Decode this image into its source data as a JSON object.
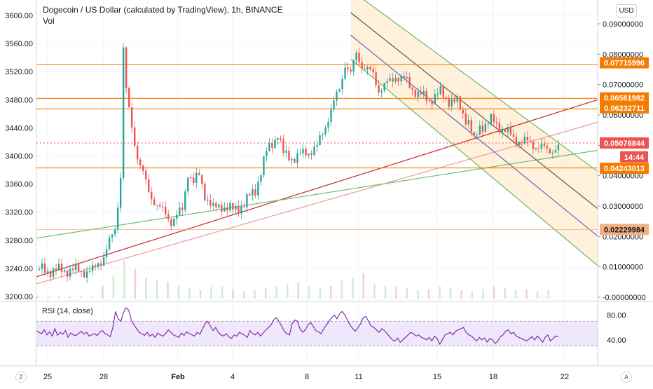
{
  "header": {
    "title": "Dogecoin / US Dollar (calculated by TradingView), 1h, BINANCE",
    "vol_label": "Vol",
    "currency_button": "USD"
  },
  "rsi": {
    "label": "RSI (14, close)",
    "ticks": [
      "80.00",
      "40.00"
    ],
    "band": [
      30,
      70
    ],
    "ylim": [
      0,
      100
    ],
    "series": [
      55,
      52,
      50,
      56,
      48,
      53,
      46,
      58,
      47,
      52,
      49,
      55,
      44,
      51,
      48,
      47,
      50,
      54,
      49,
      52,
      46,
      48,
      50,
      47,
      52,
      55,
      50,
      48,
      45,
      60,
      86,
      74,
      70,
      84,
      92,
      88,
      72,
      64,
      58,
      52,
      50,
      47,
      52,
      46,
      49,
      44,
      51,
      48,
      46,
      50,
      56,
      52,
      48,
      46,
      44,
      51,
      47,
      53,
      50,
      48,
      46,
      52,
      49,
      58,
      66,
      70,
      62,
      55,
      60,
      52,
      48,
      46,
      50,
      45,
      42,
      48,
      46,
      52,
      50,
      47,
      44,
      55,
      50,
      48,
      52,
      46,
      51,
      56,
      60,
      64,
      72,
      76,
      70,
      62,
      54,
      50,
      48,
      66,
      72,
      70,
      58,
      52,
      56,
      64,
      68,
      62,
      55,
      53,
      50,
      58,
      64,
      70,
      76,
      80,
      74,
      82,
      86,
      80,
      72,
      64,
      58,
      54,
      60,
      66,
      76,
      78,
      70,
      62,
      60,
      56,
      52,
      58,
      55,
      50,
      45,
      40,
      38,
      43,
      36,
      40,
      44,
      48,
      52,
      50,
      46,
      48,
      44,
      42,
      40,
      44,
      38,
      46,
      42,
      33,
      40,
      48,
      50,
      52,
      48,
      54,
      56,
      58,
      60,
      52,
      48,
      46,
      42,
      38,
      44,
      40,
      43,
      36,
      42,
      40,
      34,
      38,
      45,
      48,
      54,
      56,
      50,
      52,
      46,
      44,
      42,
      40,
      38,
      42,
      45,
      40,
      46,
      42,
      36,
      44,
      48,
      38,
      42,
      46,
      45
    ]
  },
  "chart_data": {
    "type": "candlestick",
    "title": "Dogecoin / US Dollar (calculated by TradingView), 1h, BINANCE",
    "ylim": [
      3200,
      3600
    ],
    "right_axis_ylim": [
      0.0,
      0.09
    ],
    "x_tick_labels": [
      "25",
      "28",
      "Feb",
      "4",
      "8",
      "11",
      "15",
      "18",
      "22"
    ],
    "y_tick_labels_left": [
      "3600.00",
      "3560.00",
      "3520.00",
      "3480.00",
      "3440.00",
      "3400.00",
      "3360.00",
      "3320.00",
      "3280.00",
      "3240.00",
      "3200.00"
    ],
    "y_tick_labels_right": [
      "0.09000000",
      "0.08000000",
      "0.07000000",
      "0.06000000",
      "0.05000000",
      "0.04000000",
      "0.03000000",
      "0.02000000",
      "0.01000000",
      "-0.00000000"
    ],
    "price_tags": [
      {
        "label": "0.07715996",
        "value": 0.07715996,
        "color": "#f57c00"
      },
      {
        "label": "0.06561982",
        "value": 0.06561982,
        "color": "#f57c00"
      },
      {
        "label": "0.06232711",
        "value": 0.06232711,
        "color": "#f57c00"
      },
      {
        "label": "0.05076844",
        "value": 0.05076844,
        "color": "#ef5350"
      },
      {
        "label": "14:44",
        "value": 0.0462,
        "color": "#ef5350"
      },
      {
        "label": "0.04243013",
        "value": 0.04243013,
        "color": "#f57c00"
      },
      {
        "label": "0.02229984",
        "value": 0.02229984,
        "color": "#f5b080"
      }
    ],
    "price_points": [
      [
        0,
        3238
      ],
      [
        4,
        3237
      ],
      [
        8,
        3237
      ],
      [
        12,
        3238
      ],
      [
        16,
        3236
      ],
      [
        20,
        3236
      ],
      [
        24,
        3258
      ],
      [
        28,
        3295
      ],
      [
        30,
        3372
      ],
      [
        31,
        3555
      ],
      [
        32,
        3490
      ],
      [
        34,
        3440
      ],
      [
        36,
        3400
      ],
      [
        40,
        3348
      ],
      [
        44,
        3325
      ],
      [
        48,
        3308
      ],
      [
        52,
        3322
      ],
      [
        54,
        3378
      ],
      [
        56,
        3362
      ],
      [
        58,
        3372
      ],
      [
        60,
        3346
      ],
      [
        63,
        3324
      ],
      [
        66,
        3330
      ],
      [
        70,
        3322
      ],
      [
        74,
        3332
      ],
      [
        78,
        3352
      ],
      [
        82,
        3405
      ],
      [
        86,
        3432
      ],
      [
        88,
        3402
      ],
      [
        92,
        3397
      ],
      [
        96,
        3405
      ],
      [
        100,
        3412
      ],
      [
        104,
        3455
      ],
      [
        108,
        3495
      ],
      [
        110,
        3532
      ],
      [
        112,
        3516
      ],
      [
        114,
        3545
      ],
      [
        116,
        3530
      ],
      [
        120,
        3515
      ],
      [
        122,
        3495
      ],
      [
        126,
        3505
      ],
      [
        128,
        3515
      ],
      [
        132,
        3505
      ],
      [
        136,
        3488
      ],
      [
        140,
        3480
      ],
      [
        144,
        3490
      ],
      [
        146,
        3482
      ],
      [
        150,
        3475
      ],
      [
        152,
        3460
      ],
      [
        154,
        3450
      ],
      [
        156,
        3420
      ],
      [
        158,
        3442
      ],
      [
        162,
        3450
      ],
      [
        166,
        3440
      ],
      [
        170,
        3425
      ],
      [
        174,
        3420
      ],
      [
        178,
        3415
      ],
      [
        182,
        3408
      ],
      [
        186,
        3412
      ]
    ],
    "volume": [
      0.05,
      0.04,
      0.05,
      0.04,
      0.06,
      0.05,
      0.3,
      0.55,
      0.9,
      0.7,
      0.5,
      0.45,
      0.4,
      0.3,
      0.25,
      0.2,
      0.28,
      0.3,
      0.22,
      0.18,
      0.2,
      0.25,
      0.3,
      0.35,
      0.4,
      0.3,
      0.25,
      0.3,
      0.45,
      0.5,
      0.6,
      0.35,
      0.3,
      0.28,
      0.25,
      0.2,
      0.22,
      0.3,
      0.25,
      0.2,
      0.18,
      0.22,
      0.3,
      0.25,
      0.2,
      0.22,
      0.18,
      0.2
    ],
    "price_levels": [
      3530,
      3482,
      3467,
      3383
    ],
    "trendlines": [
      {
        "name": "red-support",
        "color": "#c62828",
        "from": [
          0,
          3228
        ],
        "to": [
          200,
          3480
        ]
      },
      {
        "name": "pink-support",
        "color": "#ef9a9a",
        "from": [
          0,
          3218
        ],
        "to": [
          200,
          3448
        ]
      },
      {
        "name": "green-support",
        "color": "#66bb6a",
        "from": [
          0,
          3283
        ],
        "to": [
          200,
          3408
        ]
      },
      {
        "name": "channel-top",
        "color": "#66bb6a",
        "from": [
          112,
          3636
        ],
        "to": [
          200,
          3378
        ]
      },
      {
        "name": "channel-bottom",
        "color": "#66bb6a",
        "from": [
          112,
          3538
        ],
        "to": [
          200,
          3244
        ]
      },
      {
        "name": "channel-mid",
        "color": "#5c6bc0",
        "from": [
          112,
          3572
        ],
        "to": [
          200,
          3286
        ]
      },
      {
        "name": "channel-black",
        "color": "#555555",
        "from": [
          112,
          3604
        ],
        "to": [
          200,
          3325
        ]
      }
    ]
  },
  "icons": {
    "zoom_reset": "Z",
    "auto_scale": "A"
  }
}
